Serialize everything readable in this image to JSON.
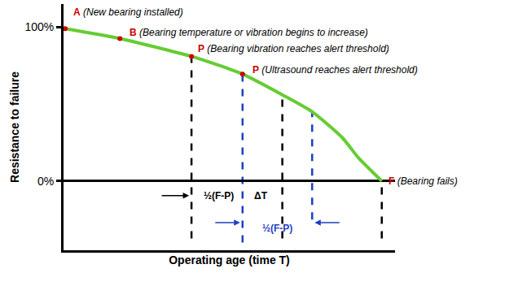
{
  "chart_data": {
    "type": "line",
    "y_label": "Resistance to failure",
    "x_label": "Operating age (time T)",
    "xlim": [
      0,
      100
    ],
    "xticks": [],
    "ylim": [
      -45,
      115
    ],
    "yticks": [
      {
        "value": 0,
        "label": "0%"
      },
      {
        "value": 100,
        "label": "100%"
      }
    ],
    "tick_labels": "y",
    "grid": false,
    "x": [
      0.5,
      17,
      38.6,
      54,
      66,
      75,
      84,
      89,
      96
    ],
    "values": [
      99,
      92.6,
      81,
      69.5,
      56,
      45,
      28.4,
      15,
      0
    ],
    "color": "#66cc33",
    "points": [
      {
        "label": "A",
        "text": "(New bearing installed)",
        "x": 0.5,
        "y": 99,
        "marker": "circle",
        "color": "#cc0000"
      },
      {
        "label": "B",
        "text": "(Bearing temperature or vibration begins to increase)",
        "x": 17,
        "y": 92.6,
        "marker": "circle",
        "color": "#cc0000"
      },
      {
        "label": "P",
        "text": "(Bearing vibration reaches alert threshold)",
        "x": 38.6,
        "y": 81,
        "marker": "circle",
        "color": "#cc0000"
      },
      {
        "label": "P",
        "text": "(Ultrasound reaches alert threshold)",
        "x": 54,
        "y": 69.5,
        "marker": "circle",
        "color": "#cc0000"
      },
      {
        "label": "F",
        "text": "(Bearing fails)",
        "x": 96,
        "y": 0,
        "marker": "none",
        "color": "#cc0000"
      }
    ],
    "guides": [
      {
        "x": 38.6,
        "y_top": 81,
        "y_bottom": -37.4,
        "color": "#000000"
      },
      {
        "x": 54,
        "y_top": 69.5,
        "y_bottom": -40,
        "color": "#1f3fbf"
      },
      {
        "x": 66,
        "y_top": 56,
        "y_bottom": -37.4,
        "color": "#000000"
      },
      {
        "x": 75,
        "y_top": 45,
        "y_bottom": -25,
        "color": "#1f3fbf"
      },
      {
        "x": 96,
        "y_top": 0,
        "y_bottom": -37.4,
        "color": "#000000"
      }
    ],
    "annotations": [
      {
        "text": "½(F-P)",
        "x": 46.7,
        "y": -9.5,
        "color": "#000000"
      },
      {
        "text": "ΔT",
        "x": 59.5,
        "y": -9.5,
        "color": "#000000"
      },
      {
        "text": "½(F-P)",
        "x": 64.4,
        "y": -31,
        "color": "#1f3fbf"
      }
    ]
  }
}
